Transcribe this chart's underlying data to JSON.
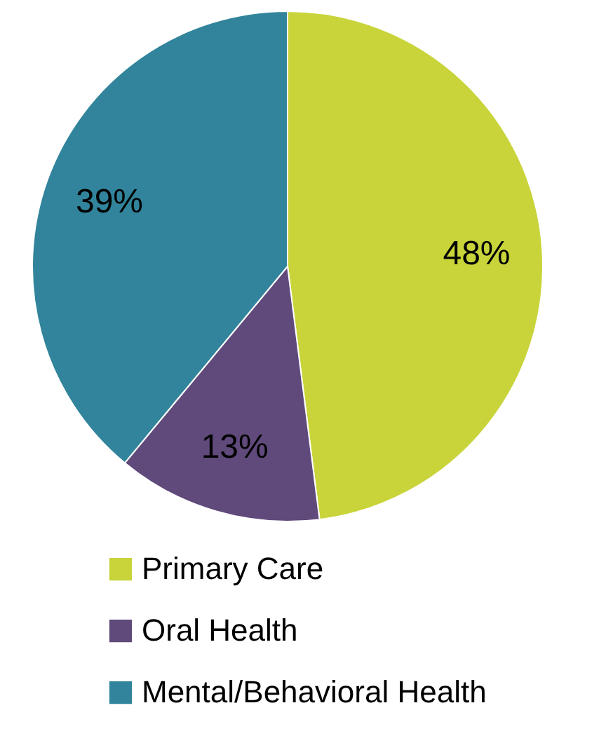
{
  "chart_data": {
    "type": "pie",
    "categories": [
      "Primary Care",
      "Oral Health",
      "Mental/Behavioral Health"
    ],
    "values": [
      48,
      13,
      39
    ],
    "value_labels": [
      "48%",
      "13%",
      "39%"
    ],
    "colors": [
      "#c8d43a",
      "#604a7b",
      "#31849b"
    ],
    "legend": "bottom"
  }
}
